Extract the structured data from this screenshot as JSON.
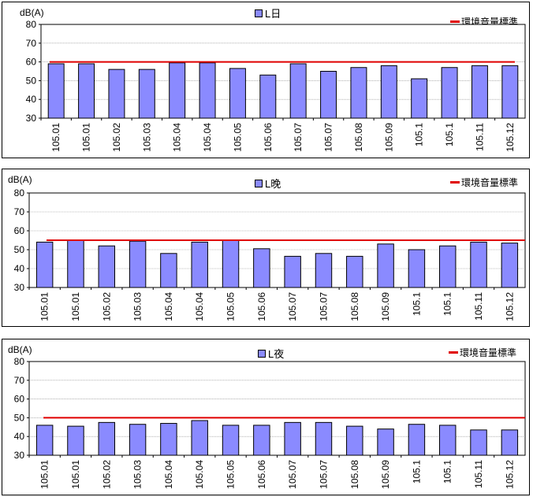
{
  "colors": {
    "bar": "#8a8aff",
    "bar_border": "#000000",
    "standard_line": "#e00000",
    "grid": "#808080"
  },
  "chart_data": [
    {
      "type": "bar",
      "ylabel": "dB(A)",
      "ylim": [
        30,
        80
      ],
      "yticks": [
        30,
        40,
        50,
        60,
        70,
        80
      ],
      "grid": true,
      "legend_position": "top",
      "categories": [
        "105.01",
        "105.01",
        "105.02",
        "105.03",
        "105.04",
        "105.04",
        "105.05",
        "105.06",
        "105.07",
        "105.07",
        "105.08",
        "105.09",
        "105.1",
        "105.1",
        "105.11",
        "105.12"
      ],
      "series": [
        {
          "name": "L日",
          "values": [
            59,
            59,
            56,
            56,
            59.5,
            59.5,
            56.5,
            53,
            59,
            55,
            57,
            58,
            51,
            57,
            58,
            58
          ]
        }
      ],
      "standard": {
        "name": "環境音量標準",
        "value": 60
      }
    },
    {
      "type": "bar",
      "ylabel": "dB(A)",
      "ylim": [
        30,
        80
      ],
      "yticks": [
        30,
        40,
        50,
        60,
        70,
        80
      ],
      "grid": true,
      "legend_position": "top",
      "categories": [
        "105.01",
        "105.01",
        "105.02",
        "105.03",
        "105.04",
        "105.04",
        "105.05",
        "105.06",
        "105.07",
        "105.07",
        "105.08",
        "105.09",
        "105.1",
        "105.1",
        "105.11",
        "105.12"
      ],
      "series": [
        {
          "name": "L晚",
          "values": [
            54,
            55,
            52,
            54.5,
            48,
            54,
            55,
            50.5,
            46.5,
            48,
            46.5,
            53,
            50,
            52,
            54,
            53.5
          ]
        }
      ],
      "standard": {
        "name": "環境音量標準",
        "value": 55
      }
    },
    {
      "type": "bar",
      "ylabel": "dB(A)",
      "ylim": [
        30,
        80
      ],
      "yticks": [
        30,
        40,
        50,
        60,
        70,
        80
      ],
      "grid": true,
      "legend_position": "top",
      "categories": [
        "105.01",
        "105.01",
        "105.02",
        "105.03",
        "105.04",
        "105.04",
        "105.05",
        "105.06",
        "105.07",
        "105.07",
        "105.08",
        "105.09",
        "105.1",
        "105.1",
        "105.11",
        "105.12"
      ],
      "series": [
        {
          "name": "L夜",
          "values": [
            46,
            45.5,
            47.5,
            46.5,
            47,
            48.5,
            46,
            46,
            47.5,
            47.5,
            45.5,
            44,
            46.5,
            46,
            43.5,
            43.5
          ]
        }
      ],
      "standard": {
        "name": "環境音量標準",
        "value": 50
      }
    }
  ]
}
